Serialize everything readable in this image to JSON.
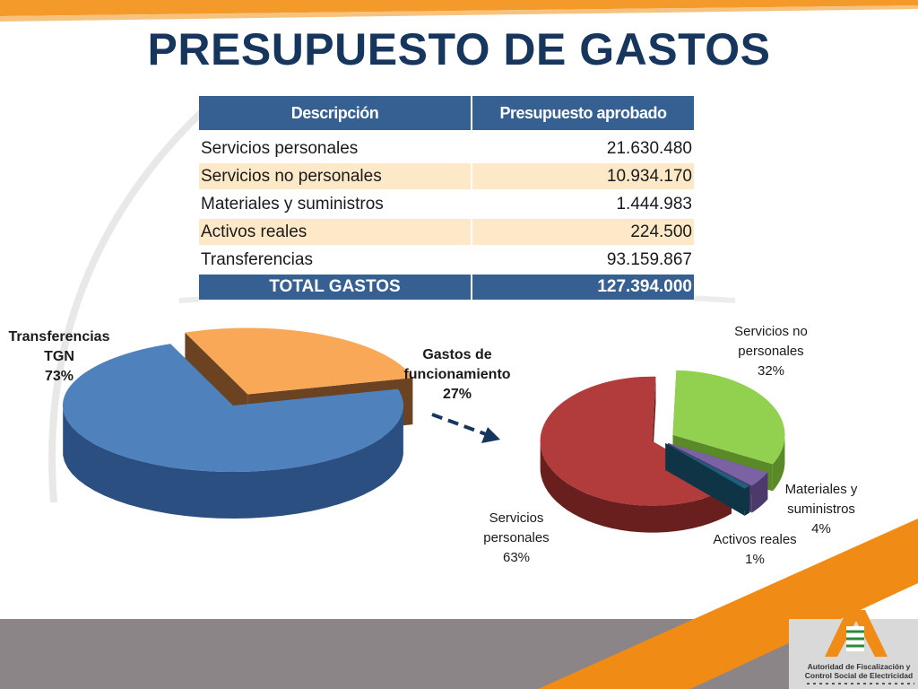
{
  "title": "PRESUPUESTO DE GASTOS",
  "table": {
    "headers": [
      "Descripción",
      "Presupuesto  aprobado"
    ],
    "rows": [
      {
        "desc": "Servicios personales",
        "value": "21.630.480"
      },
      {
        "desc": "Servicios no personales",
        "value": "10.934.170"
      },
      {
        "desc": "Materiales y suministros",
        "value": "1.444.983"
      },
      {
        "desc": "Activos reales",
        "value": "224.500"
      },
      {
        "desc": "Transferencias",
        "value": "93.159.867"
      }
    ],
    "total": {
      "desc": "TOTAL GASTOS",
      "value": "127.394.000"
    }
  },
  "chart_data": [
    {
      "type": "pie",
      "title": "",
      "slices": [
        {
          "label": [
            "Transferencias",
            "TGN",
            "73%"
          ],
          "value": 73,
          "color": "#4f81bd",
          "side": "#2a4f80"
        },
        {
          "label": [
            "Gastos de",
            "funcionamiento",
            "27%"
          ],
          "value": 27,
          "color": "#f9a857",
          "side": "#6b4322"
        }
      ]
    },
    {
      "type": "pie",
      "title": "",
      "slices": [
        {
          "label": [
            "Servicios no",
            "personales",
            "32%"
          ],
          "value": 32,
          "color": "#92d050",
          "side": "#5a8a28"
        },
        {
          "label": [
            "Materiales y",
            "suministros",
            "4%"
          ],
          "value": 4,
          "color": "#7b62a3",
          "side": "#4c3a6c"
        },
        {
          "label": [
            "Activos reales",
            "1%"
          ],
          "value": 1,
          "color": "#1f5f7a",
          "side": "#0f3445"
        },
        {
          "label": [
            "Servicios",
            "personales",
            "63%"
          ],
          "value": 63,
          "color": "#b23b3b",
          "side": "#6a1f1f"
        }
      ]
    }
  ],
  "colors": {
    "title": "#17365d",
    "header": "#366092",
    "alt_row": "#fde9c8",
    "orange_band": "#f39a2b",
    "gray_band": "#8b8587"
  },
  "logo": {
    "icon": "logo-a-icon",
    "line1": "Autoridad de Fiscalización y",
    "line2": "Control Social de Electricidad"
  }
}
